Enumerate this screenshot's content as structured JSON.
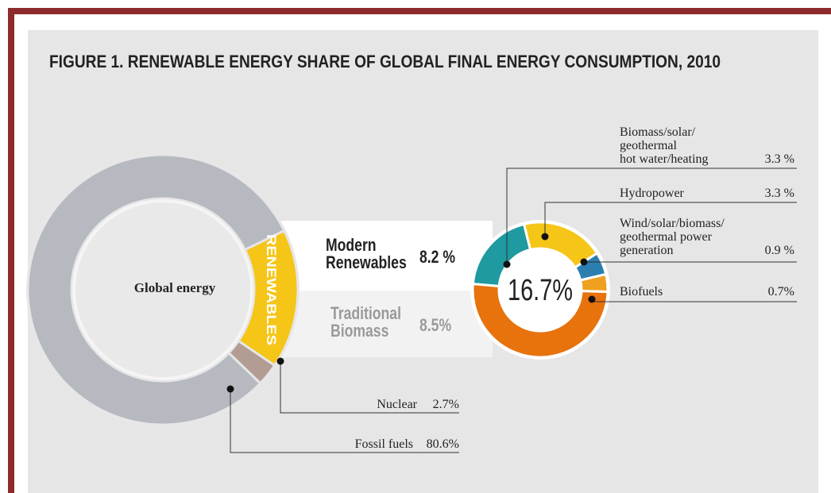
{
  "title": "FIGURE 1. RENEWABLE ENERGY SHARE OF GLOBAL FINAL ENERGY CONSUMPTION, 2010",
  "chart_data": [
    {
      "type": "donut",
      "center_label": "Global energy",
      "categories": [
        "RENEWABLES",
        "Nuclear",
        "Fossil fuels"
      ],
      "values": [
        16.7,
        2.7,
        80.6
      ],
      "value_labels": [
        "16.7%",
        "2.7%",
        "80.6%"
      ],
      "colors": [
        "#f5c518",
        "#b39c94",
        "#b6b9c0"
      ]
    },
    {
      "type": "donut",
      "categories": [
        "Biomass/solar/\ngeothermal\nhot water/heating",
        "Hydropower",
        "Wind/solar/biomass/\ngeothermal power\ngeneration",
        "Biofuels",
        "Traditional\nBiomass"
      ],
      "values": [
        3.3,
        3.3,
        0.9,
        0.7,
        8.5
      ],
      "value_labels": [
        "3.3 %",
        "3.3 %",
        "0.9 %",
        "0.7%",
        "8.5%"
      ],
      "colors": [
        "#1e9aa0",
        "#f5c518",
        "#2a7fb0",
        "#f0a020",
        "#e8720c"
      ],
      "groups": [
        {
          "name": "Modern\nRenewables",
          "value": 8.2,
          "value_label": "8.2 %"
        }
      ]
    }
  ]
}
